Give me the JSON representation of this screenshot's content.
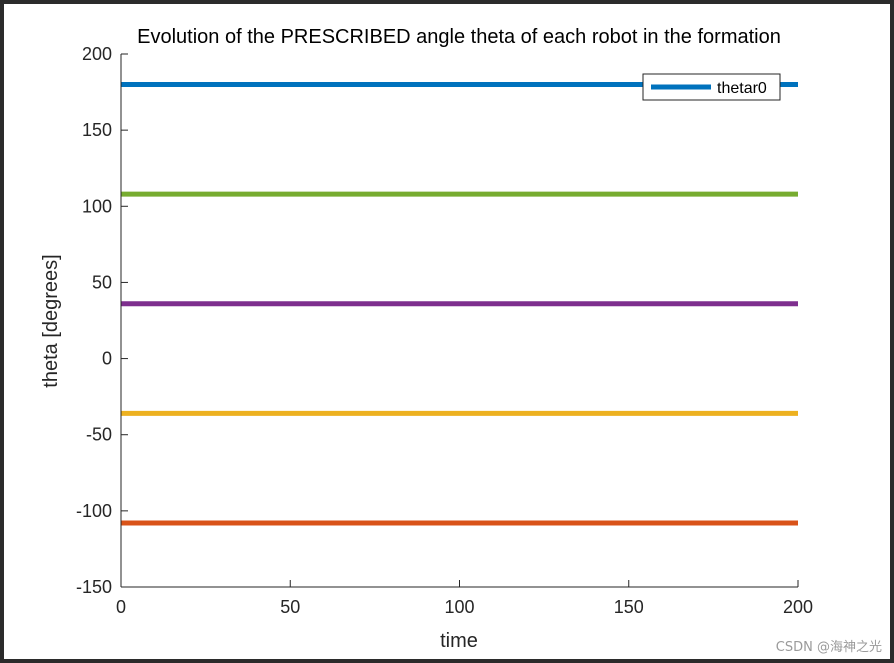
{
  "chart_data": {
    "type": "line",
    "title": "Evolution of the PRESCRIBED angle theta of each robot in the formation",
    "xlabel": "time",
    "ylabel": "theta [degrees]",
    "xlim": [
      0,
      200
    ],
    "ylim": [
      -150,
      200
    ],
    "xticks": [
      0,
      50,
      100,
      150,
      200
    ],
    "yticks": [
      -150,
      -100,
      -50,
      0,
      50,
      100,
      150,
      200
    ],
    "grid": false,
    "legend_position": "top-right",
    "series": [
      {
        "name": "thetar0",
        "x": [
          0,
          200
        ],
        "y": [
          180,
          180
        ],
        "color": "#0072bd",
        "in_legend": true
      },
      {
        "name": "series-2",
        "x": [
          0,
          200
        ],
        "y": [
          -108,
          -108
        ],
        "color": "#d95319",
        "in_legend": false
      },
      {
        "name": "series-3",
        "x": [
          0,
          200
        ],
        "y": [
          -36,
          -36
        ],
        "color": "#edb120",
        "in_legend": false
      },
      {
        "name": "series-4",
        "x": [
          0,
          200
        ],
        "y": [
          36,
          36
        ],
        "color": "#7e2f8e",
        "in_legend": false
      },
      {
        "name": "series-5",
        "x": [
          0,
          200
        ],
        "y": [
          108,
          108
        ],
        "color": "#77ac30",
        "in_legend": false
      }
    ]
  },
  "watermark": "CSDN @海神之光"
}
